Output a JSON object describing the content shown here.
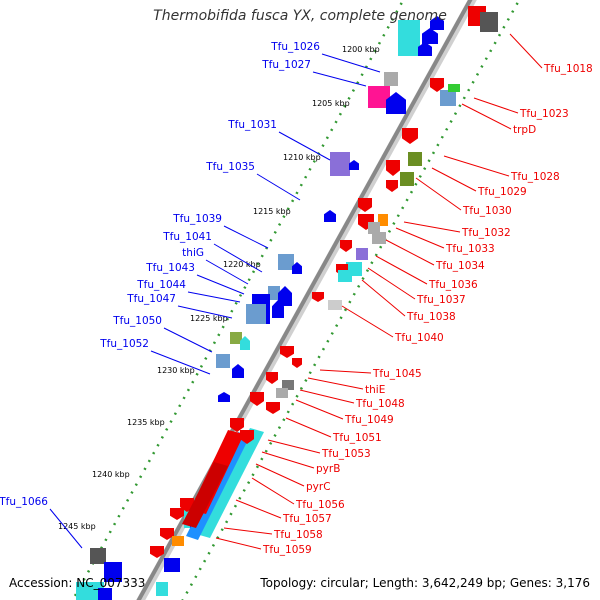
{
  "title": "Thermobifida fusca YX, complete genome",
  "accession_label": "Accession: NC_007333",
  "summary_label": "Topology: circular; Length: 3,642,249 bp; Genes: 3,176",
  "colors": {
    "forward_strand": "#0000ee",
    "reverse_strand": "#ee0000",
    "backbone": "#888888",
    "tick_dots": "#339933"
  },
  "ticks": [
    "1200 kbp",
    "1205 kbp",
    "1210 kbp",
    "1215 kbp",
    "1220 kbp",
    "1225 kbp",
    "1230 kbp",
    "1235 kbp",
    "1240 kbp",
    "1245 kbp"
  ],
  "forward_labels": [
    "Tfu_1026",
    "Tfu_1027",
    "Tfu_1031",
    "Tfu_1035",
    "Tfu_1039",
    "Tfu_1041",
    "thiG",
    "Tfu_1043",
    "Tfu_1044",
    "Tfu_1047",
    "Tfu_1050",
    "Tfu_1052",
    "Tfu_1066"
  ],
  "reverse_labels": [
    "Tfu_1018",
    "Tfu_1023",
    "trpD",
    "Tfu_1028",
    "Tfu_1029",
    "Tfu_1030",
    "Tfu_1032",
    "Tfu_1033",
    "Tfu_1034",
    "Tfu_1036",
    "Tfu_1037",
    "Tfu_1038",
    "Tfu_1040",
    "Tfu_1045",
    "thiE",
    "Tfu_1048",
    "Tfu_1049",
    "Tfu_1051",
    "Tfu_1053",
    "pyrB",
    "pyrC",
    "Tfu_1056",
    "Tfu_1057",
    "Tfu_1058",
    "Tfu_1059"
  ]
}
